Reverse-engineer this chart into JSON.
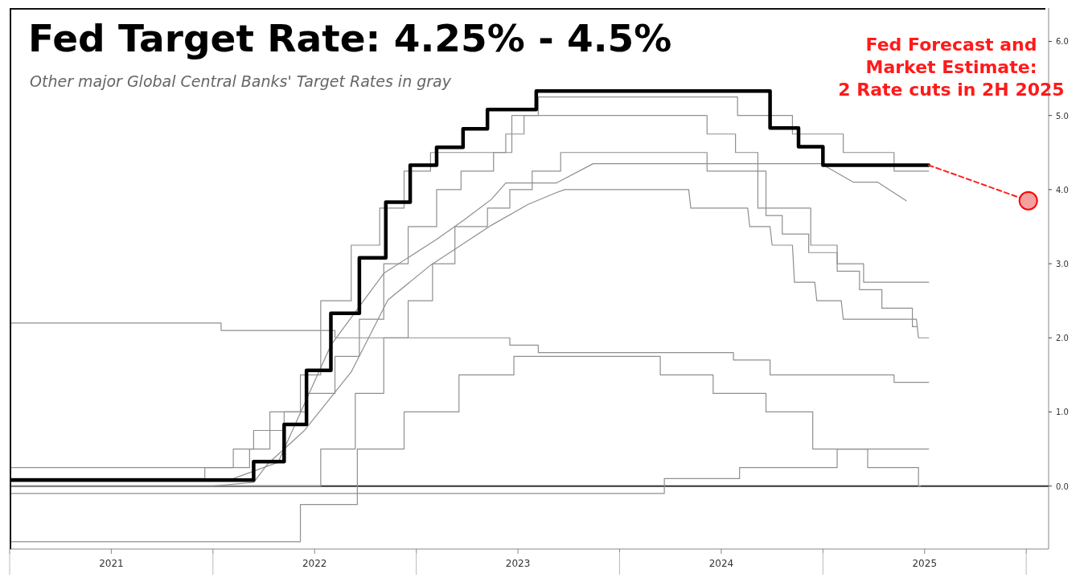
{
  "chart_data": {
    "type": "step",
    "title": "Fed Target Rate: 4.25% - 4.5%",
    "subtitle": "Other major Global Central Banks' Target Rates in gray",
    "annotations": [
      "Fed Forecast and\nMarket Estimate:\n2 Rate cuts in 2H 2025"
    ],
    "xlim": [
      2021,
      2026.11
    ],
    "ylim": [
      -0.85,
      6.45
    ],
    "xticks": [
      {
        "value": 2021,
        "label": null
      },
      {
        "value": 2021.5,
        "label": "2021"
      },
      {
        "value": 2022,
        "label": null
      },
      {
        "value": 2022.5,
        "label": "2022"
      },
      {
        "value": 2023,
        "label": null
      },
      {
        "value": 2023.5,
        "label": "2023"
      },
      {
        "value": 2024,
        "label": null
      },
      {
        "value": 2024.5,
        "label": "2024"
      },
      {
        "value": 2025,
        "label": null
      },
      {
        "value": 2025.5,
        "label": "2025"
      },
      {
        "value": 2026,
        "label": null
      }
    ],
    "yticks": [
      {
        "value": 0,
        "label": "0.0"
      },
      {
        "value": 1,
        "label": "1.0"
      },
      {
        "value": 2,
        "label": "2.0"
      },
      {
        "value": 3,
        "label": "3.0"
      },
      {
        "value": 4,
        "label": "4.0"
      },
      {
        "value": 5,
        "label": "5.0"
      },
      {
        "value": 6,
        "label": "6.0"
      }
    ],
    "ref_lines": [
      {
        "axis": "y",
        "value": 0,
        "label": null,
        "color": "#333333"
      }
    ],
    "grid": false,
    "legend": false,
    "marker": "none",
    "series": [
      {
        "color": "#8f8f8f",
        "x": [
          2021,
          2021.96,
          2022.1,
          2022.2,
          2022.35,
          2022.46,
          2022.6,
          2022.72,
          2022.84,
          2022.96,
          2023.1,
          2023.22,
          2023.38,
          2023.47,
          2023.6,
          2024.58,
          2024.85,
          2025.1,
          2025.35,
          2025.52
        ],
        "values": [
          0.1,
          0.25,
          0.5,
          0.75,
          1.0,
          1.25,
          1.75,
          2.25,
          3.0,
          3.5,
          4.0,
          4.25,
          4.5,
          5.0,
          5.25,
          5.0,
          4.75,
          4.5,
          4.25,
          4.25
        ]
      },
      {
        "color": "#8f8f8f",
        "x": [
          2021,
          2022.18,
          2022.28,
          2022.43,
          2022.53,
          2022.68,
          2022.82,
          2022.94,
          2023.07,
          2023.44,
          2023.53,
          2024.43,
          2024.57,
          2024.68,
          2024.94,
          2025.07,
          2025.2,
          2025.52
        ],
        "values": [
          0.25,
          0.5,
          1.0,
          1.5,
          2.5,
          3.25,
          3.75,
          4.25,
          4.5,
          4.75,
          5.0,
          4.75,
          4.5,
          3.75,
          3.25,
          3.0,
          2.75,
          2.75
        ]
      },
      {
        "color": "#8f8f8f",
        "x": [
          2021,
          2022.53,
          2022.7,
          2022.84,
          2022.96,
          2023.08,
          2023.19,
          2023.35,
          2023.46,
          2023.57,
          2023.71,
          2024.43,
          2024.72,
          2024.8,
          2024.93,
          2025.07,
          2025.18,
          2025.29,
          2025.44,
          2025.46
        ],
        "values": [
          0,
          0.5,
          1.25,
          2.0,
          2.5,
          3.0,
          3.5,
          3.75,
          4.0,
          4.25,
          4.5,
          4.25,
          3.65,
          3.4,
          3.15,
          2.9,
          2.65,
          2.4,
          2.15,
          2.15
        ]
      },
      {
        "type": "line",
        "color": "#8f8f8f",
        "x": [
          2021,
          2022.0,
          2022.2,
          2022.27,
          2022.45,
          2022.68,
          2022.86,
          2023.07,
          2023.37,
          2023.55,
          2023.69,
          2023.73,
          2024.34,
          2024.35,
          2024.63,
          2024.64,
          2024.74,
          2024.75,
          2024.85,
          2024.86,
          2024.96,
          2024.97,
          2025.09,
          2025.1,
          2025.46,
          2025.47,
          2025.52
        ],
        "values": [
          0,
          0,
          0.05,
          0.3,
          0.75,
          1.54,
          2.51,
          2.98,
          3.52,
          3.8,
          3.96,
          4.0,
          4.0,
          3.75,
          3.75,
          3.5,
          3.5,
          3.25,
          3.25,
          2.75,
          2.75,
          2.5,
          2.5,
          2.25,
          2.25,
          2.0,
          2.0
        ]
      },
      {
        "type": "line",
        "color": "#8f8f8f",
        "x": [
          2021,
          2022.1,
          2022.32,
          2022.58,
          2022.84,
          2023.1,
          2023.23,
          2023.37,
          2023.44,
          2023.69,
          2023.87,
          2024.99,
          2025.15,
          2025.27,
          2025.41
        ],
        "values": [
          0.1,
          0.1,
          0.32,
          1.9,
          2.87,
          3.33,
          3.58,
          3.87,
          4.09,
          4.09,
          4.35,
          4.35,
          4.1,
          4.1,
          3.85
        ]
      },
      {
        "color": "#8f8f8f",
        "x": [
          2021,
          2022.04,
          2022.6,
          2023.46,
          2023.6,
          2024.56,
          2024.74,
          2025.35,
          2025.52
        ],
        "values": [
          2.2,
          2.1,
          2.0,
          1.9,
          1.8,
          1.7,
          1.5,
          1.4,
          1.4
        ]
      },
      {
        "color": "#8f8f8f",
        "x": [
          2021,
          2022.43,
          2022.71,
          2022.94,
          2023.21,
          2023.48,
          2024.2,
          2024.46,
          2024.72,
          2024.95,
          2025.22,
          2025.47,
          2025.48
        ],
        "values": [
          -0.75,
          -0.25,
          0.5,
          1.0,
          1.5,
          1.75,
          1.5,
          1.25,
          1.0,
          0.5,
          0.25,
          0,
          0
        ]
      },
      {
        "color": "#8f8f8f",
        "x": [
          2021,
          2024.22,
          2024.59,
          2025.07,
          2025.52
        ],
        "values": [
          -0.1,
          0.1,
          0.25,
          0.5,
          0.5
        ]
      },
      {
        "color": "#000000",
        "x": [
          2021,
          2022.2,
          2022.35,
          2022.46,
          2022.58,
          2022.72,
          2022.85,
          2022.97,
          2023.1,
          2023.23,
          2023.35,
          2023.59,
          2024.74,
          2024.88,
          2025.0,
          2025.52
        ],
        "values": [
          0.08,
          0.33,
          0.83,
          1.56,
          2.33,
          3.08,
          3.83,
          4.33,
          4.57,
          4.82,
          5.08,
          5.33,
          4.83,
          4.58,
          4.33,
          4.33
        ]
      },
      {
        "type": "line",
        "color": "#ff2020",
        "line_style": "dashed",
        "x": [
          2025.52,
          2026.01
        ],
        "values": [
          4.33,
          3.85
        ]
      },
      {
        "type": "scatter",
        "color": "#f4a0a0",
        "marker": "circle",
        "x": [
          2026.01
        ],
        "values": [
          3.85
        ]
      }
    ]
  }
}
